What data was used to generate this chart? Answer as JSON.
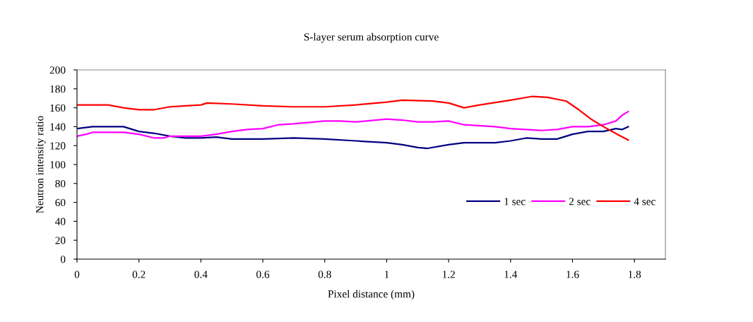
{
  "chart_data": {
    "type": "line",
    "title": "S-layer serum absorption curve",
    "xlabel": "Pixel distance (mm)",
    "ylabel": "Neutron intensity ratio",
    "xlim": [
      0,
      1.9
    ],
    "xticks": [
      0,
      0.2,
      0.4,
      0.6,
      0.8,
      1,
      1.2,
      1.4,
      1.6,
      1.8
    ],
    "ylim": [
      0,
      200
    ],
    "yticks": [
      0,
      20,
      40,
      60,
      80,
      100,
      120,
      140,
      160,
      180,
      200
    ],
    "grid": false,
    "legend": "right",
    "marker": "none",
    "line_style": "solid",
    "series": [
      {
        "name": "1 sec",
        "color": "#000080",
        "x": [
          0,
          0.05,
          0.15,
          0.2,
          0.25,
          0.3,
          0.35,
          0.4,
          0.45,
          0.5,
          0.6,
          0.7,
          0.8,
          0.9,
          1.0,
          1.05,
          1.1,
          1.13,
          1.2,
          1.25,
          1.35,
          1.4,
          1.45,
          1.5,
          1.55,
          1.6,
          1.65,
          1.7,
          1.74,
          1.76,
          1.78
        ],
        "values": [
          138,
          140,
          140,
          135,
          133,
          130,
          128,
          128,
          129,
          127,
          127,
          128,
          127,
          125,
          123,
          121,
          118,
          117,
          121,
          123,
          123,
          125,
          128,
          127,
          127,
          132,
          135,
          135,
          138,
          137,
          140
        ]
      },
      {
        "name": "2 sec",
        "color": "#ff00ff",
        "x": [
          0,
          0.03,
          0.05,
          0.15,
          0.2,
          0.25,
          0.28,
          0.3,
          0.4,
          0.45,
          0.5,
          0.55,
          0.6,
          0.65,
          0.7,
          0.8,
          0.85,
          0.9,
          1.0,
          1.05,
          1.1,
          1.15,
          1.2,
          1.25,
          1.35,
          1.4,
          1.5,
          1.55,
          1.6,
          1.65,
          1.7,
          1.74,
          1.76,
          1.78
        ],
        "values": [
          130,
          132,
          134,
          134,
          132,
          128,
          128,
          130,
          130,
          132,
          135,
          137,
          138,
          142,
          143,
          146,
          146,
          145,
          148,
          147,
          145,
          145,
          146,
          142,
          140,
          138,
          136,
          137,
          140,
          140,
          142,
          146,
          152,
          156
        ]
      },
      {
        "name": "4 sec",
        "color": "#ff0000",
        "x": [
          0,
          0.1,
          0.15,
          0.2,
          0.25,
          0.3,
          0.4,
          0.42,
          0.5,
          0.6,
          0.7,
          0.8,
          0.9,
          1.0,
          1.05,
          1.15,
          1.2,
          1.25,
          1.3,
          1.4,
          1.47,
          1.52,
          1.58,
          1.62,
          1.66,
          1.7,
          1.75,
          1.78
        ],
        "values": [
          163,
          163,
          160,
          158,
          158,
          161,
          163,
          165,
          164,
          162,
          161,
          161,
          163,
          166,
          168,
          167,
          165,
          160,
          163,
          168,
          172,
          171,
          167,
          158,
          148,
          140,
          131,
          126
        ]
      }
    ]
  }
}
